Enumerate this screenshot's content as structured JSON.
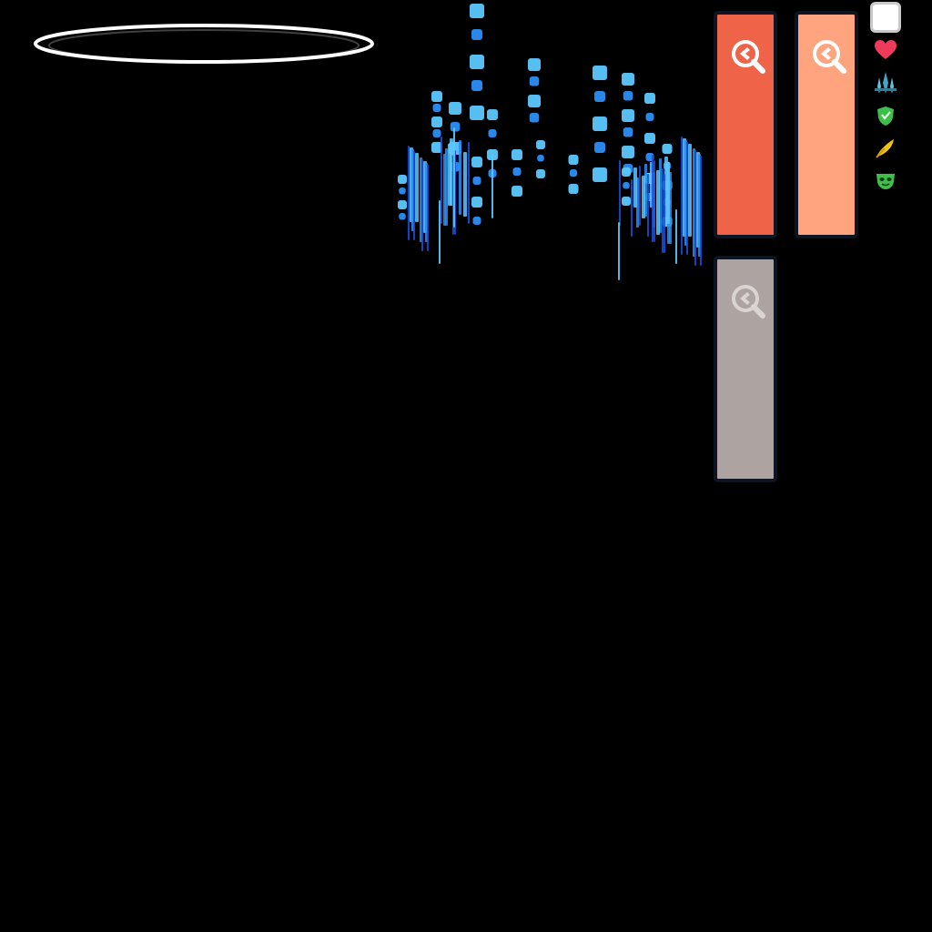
{
  "palette": {
    "background": "#000000",
    "ring": "#ffffff",
    "fx_light": "#5cc8ff",
    "fx_mid": "#2a8ef5",
    "fx_deep": "#1a4fe0"
  },
  "cards": [
    {
      "id": "card-1",
      "color": "#ef6449",
      "icon": "magnifier-key-icon",
      "icon_color": "#ffffff"
    },
    {
      "id": "card-2",
      "color": "#ffa47e",
      "icon": "magnifier-key-icon",
      "icon_color": "#ffffff"
    },
    {
      "id": "card-3",
      "color": "#ada3a1",
      "icon": "magnifier-key-icon",
      "icon_color": "#d9d3d2"
    }
  ],
  "sidebar": [
    {
      "icon": "blank-slot-icon",
      "color": "#ffffff"
    },
    {
      "icon": "heart-icon",
      "color": "#f03a5c"
    },
    {
      "icon": "crystal-spire-icon",
      "color": "#3fa6c8"
    },
    {
      "icon": "green-shield-icon",
      "color": "#3fbf4a"
    },
    {
      "icon": "yellow-feather-icon",
      "color": "#f2c21a"
    },
    {
      "icon": "green-mask-icon",
      "color": "#3fbf4a"
    }
  ]
}
